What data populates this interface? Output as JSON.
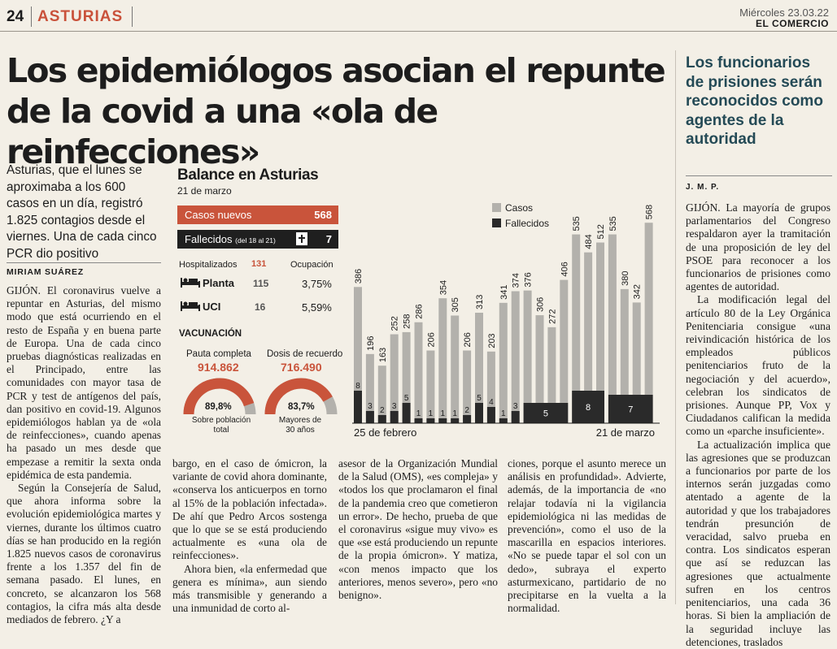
{
  "header": {
    "page_number": "24",
    "section": "ASTURIAS",
    "date": "Miércoles 23.03.22",
    "newspaper": "EL COMERCIO"
  },
  "article": {
    "headline": "Los epidemiólogos asocian el repunte de la covid a una «ola de reinfecciones»",
    "lead": "Asturias, que el lunes se aproximaba a los 600 casos en un día, registró 1.825 contagios desde el viernes. Una de cada cinco PCR dio positivo",
    "author": "MIRIAM SUÁREZ",
    "col1": [
      "GIJÓN. El coronavirus vuelve a repuntar en Asturias, del mismo modo que está ocurriendo en el resto de España y en buena parte de Europa. Una de cada cinco pruebas diagnósticas realizadas en el Principado, entre las comunidades con mayor tasa de PCR y test de antígenos del país, dan positivo en covid-19. Algunos epidemiólogos hablan ya de «ola de reinfecciones», cuando apenas ha pasado un mes desde que empezase a remitir la sexta onda epidémica de esta pandemia.",
      "Según la Consejería de Salud, que ahora informa sobre la evolución epidemiológica martes y viernes, durante los últimos cuatro días se han producido en la región 1.825 nuevos casos de coronavirus frente a los 1.357 del fin de semana pasado. El lunes, en concreto, se alcanzaron los 568 contagios, la cifra más alta desde mediados de febrero. ¿Y a"
    ],
    "col2": [
      "bargo, en el caso de ómicron, la variante de covid ahora dominante, «conserva los anticuerpos en torno al 15% de la población infectada». De ahí que Pedro Arcos sostenga que lo que se se está produciendo actualmente es «una ola de reinfecciones».",
      "Ahora bien, «la enfermedad que genera es mínima», aun siendo más transmisible y generando a una inmunidad de corto al-"
    ],
    "col3": [
      "asesor de la Organización Mundial de la Salud (OMS), «es compleja» y «todos los que proclamaron el final de la pandemia creo que cometieron un error». De hecho, prueba de que el coronavirus «sigue muy vivo» es que «se está produciendo un repunte de la propia ómicron». Y matiza, «con menos impacto que los anteriores, menos severo», pero «no benigno»."
    ],
    "col4": [
      "ciones, porque el asunto merece un análisis en profundidad». Advierte, además, de la importancia de «no relajar todavía ni la vigilancia epidemiológica ni las medidas de prevención», como el uso de la mascarilla en espacios interiores. «No se puede tapar el sol con un dedo», subraya el experto asturmexicano, partidario de no precipitarse en la vuelta a la normalidad."
    ]
  },
  "sidebar": {
    "headline": "Los funcionarios de prisiones serán reconocidos como agentes de la autoridad",
    "author": "J. M. P.",
    "paragraphs": [
      "GIJÓN. La mayoría de grupos parlamentarios del Congreso respaldaron ayer la tramitación de una proposición de ley del PSOE para reconocer a los funcionarios de prisiones como agentes de autoridad.",
      "La modificación legal del artículo 80 de la Ley Orgánica Penitenciaria consigue «una reivindicación histórica de los empleados públicos penitenciarios fruto de la negociación y del acuerdo», celebran los sindicatos de prisiones. Aunque PP, Vox y Ciudadanos califican la medida como un «parche insuficiente».",
      "La actualización implica que las agresiones que se produzcan a funcionarios por parte de los internos serán juzgadas como atentado a agente de la autoridad y que los trabajadores tendrán presunción de veracidad, salvo prueba en contra. Los sindicatos esperan que así se reduzcan las agresiones que actualmente sufren en los centros penitenciarios, una cada 36 horas. Si bien la ampliación de la seguridad incluye las detenciones, traslados"
    ]
  },
  "infographic": {
    "title": "Balance en Asturias",
    "date": "21 de marzo",
    "casos_nuevos_label": "Casos nuevos",
    "casos_nuevos_value": "568",
    "fallecidos_label": "Fallecidos",
    "fallecidos_note": "(del 18 al 21)",
    "fallecidos_value": "7",
    "hospitalizados_label": "Hospitalizados",
    "hospitalizados_value": "131",
    "ocupacion_label": "Ocupación",
    "planta_label": "Planta",
    "planta_value": "115",
    "planta_pct": "3,75%",
    "uci_label": "UCI",
    "uci_value": "16",
    "uci_pct": "5,59%",
    "vacunacion_label": "VACUNACIÓN",
    "pauta_label": "Pauta completa",
    "pauta_value": "914.862",
    "pauta_pct": "89,8%",
    "pauta_pct_value": 89.8,
    "pauta_sub1": "Sobre población",
    "pauta_sub2": "total",
    "dosis_label": "Dosis de recuerdo",
    "dosis_value": "716.490",
    "dosis_pct": "83,7%",
    "dosis_pct_value": 83.7,
    "dosis_sub1": "Mayores de",
    "dosis_sub2": "30 años",
    "colors": {
      "red": "#c9543b",
      "dark": "#1f1f1f",
      "gray": "#b3b1ac"
    }
  },
  "chart_data": {
    "type": "bar",
    "x_start_label": "25 de febrero",
    "x_end_label": "21 de marzo",
    "legend": [
      "Casos",
      "Fallecidos"
    ],
    "legend_placement": "top-left",
    "casos": [
      386,
      196,
      163,
      252,
      258,
      286,
      206,
      354,
      305,
      206,
      313,
      203,
      341,
      374,
      376,
      306,
      272,
      406,
      535,
      484,
      512,
      535,
      380,
      342,
      568
    ],
    "fallecidos_daily": [
      8,
      3,
      2,
      3,
      5,
      1,
      1,
      1,
      1,
      2,
      5,
      4,
      1,
      3
    ],
    "fallecidos_grouped": [
      {
        "value": 5,
        "span": [
          14,
          17
        ]
      },
      {
        "value": 8,
        "span": [
          18,
          20
        ]
      },
      {
        "value": 7,
        "span": [
          21,
          24
        ]
      }
    ],
    "colors": {
      "casos": "#b3b1ac",
      "fallecidos": "#2a2a2a",
      "labels": "#1c1c1c"
    }
  }
}
